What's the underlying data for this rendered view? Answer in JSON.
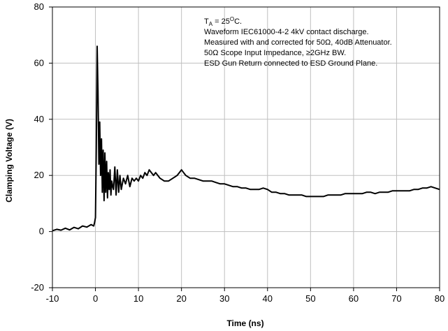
{
  "chart_data": {
    "type": "line",
    "title": "",
    "xlabel": "Time (ns)",
    "ylabel": "Clamping Voltage (V)",
    "xlim": [
      -10,
      80
    ],
    "ylim": [
      -20,
      80
    ],
    "x_ticks": [
      -10,
      0,
      10,
      20,
      30,
      40,
      50,
      60,
      70,
      80
    ],
    "y_ticks": [
      -20,
      0,
      20,
      40,
      60,
      80
    ],
    "x_tick_labels": [
      "-10",
      "0",
      "10",
      "20",
      "30",
      "40",
      "50",
      "60",
      "70",
      "80"
    ],
    "y_tick_labels": [
      "-20",
      "0",
      "20",
      "40",
      "60",
      "80"
    ],
    "grid": true,
    "legend": "none",
    "annotation": {
      "ta_prefix": "T",
      "ta_sub": "A",
      "ta_rest": " = 25",
      "ta_deg": "O",
      "ta_end": "C.",
      "lines": [
        "Waveform IEC61000-4-2 4kV contact discharge.",
        "Measured with and corrected for 50Ω, 40dB Attenuator.",
        "50Ω Scope Input Impedance, ≥2GHz BW.",
        "ESD Gun Return connected to ESD Ground Plane."
      ]
    },
    "series": [
      {
        "color": "#000000",
        "x": [
          -10,
          -9,
          -8,
          -7,
          -6,
          -5,
          -4,
          -3,
          -2,
          -1,
          -0.4,
          -0.2,
          0,
          0.2,
          0.4,
          0.6,
          0.8,
          1.0,
          1.2,
          1.4,
          1.6,
          1.8,
          2.0,
          2.2,
          2.4,
          2.6,
          2.8,
          3.0,
          3.2,
          3.4,
          3.6,
          3.8,
          4.0,
          4.2,
          4.5,
          4.8,
          5.1,
          5.4,
          5.7,
          6.0,
          6.5,
          7,
          7.5,
          8,
          8.5,
          9,
          9.5,
          10,
          10.5,
          11,
          11.5,
          12,
          12.5,
          13,
          13.5,
          14,
          15,
          16,
          17,
          18,
          19,
          19.5,
          20,
          20.5,
          21,
          22,
          23,
          24,
          25,
          26,
          27,
          28,
          29,
          30,
          31,
          32,
          33,
          34,
          35,
          36,
          37,
          38,
          39,
          40,
          41,
          42,
          43,
          44,
          45,
          46,
          47,
          48,
          49,
          50,
          51,
          52,
          53,
          54,
          55,
          56,
          57,
          58,
          59,
          60,
          61,
          62,
          63,
          64,
          65,
          66,
          67,
          68,
          69,
          70,
          71,
          72,
          73,
          74,
          75,
          76,
          77,
          78,
          79,
          80
        ],
        "y": [
          0.3,
          0.8,
          0.5,
          1.2,
          0.6,
          1.5,
          1.0,
          2.0,
          1.6,
          2.5,
          2.0,
          3.2,
          5,
          30,
          66,
          50,
          24,
          39,
          20,
          33,
          14,
          29,
          11,
          28,
          14,
          25,
          12,
          21,
          15,
          22,
          13,
          18,
          16,
          15,
          23,
          13,
          22,
          14,
          20,
          15,
          19,
          17,
          20,
          16,
          19,
          18,
          19,
          18,
          20,
          19,
          21,
          20,
          22,
          21,
          20,
          21,
          19,
          18,
          18,
          19,
          20,
          21,
          22,
          21,
          20,
          19,
          19,
          18.5,
          18,
          18,
          18,
          17.5,
          17,
          17,
          16.5,
          16,
          16,
          15.5,
          15.5,
          15,
          15,
          15,
          15.5,
          15,
          14,
          14,
          13.5,
          13.5,
          13,
          13,
          13,
          13,
          12.5,
          12.5,
          12.5,
          12.5,
          12.5,
          13,
          13,
          13,
          13,
          13.5,
          13.5,
          13.5,
          13.5,
          13.5,
          14,
          14,
          13.5,
          14,
          14,
          14,
          14.5,
          14.5,
          14.5,
          14.5,
          14.5,
          15,
          15,
          15.5,
          15.5,
          16,
          15.5,
          15
        ]
      }
    ]
  }
}
